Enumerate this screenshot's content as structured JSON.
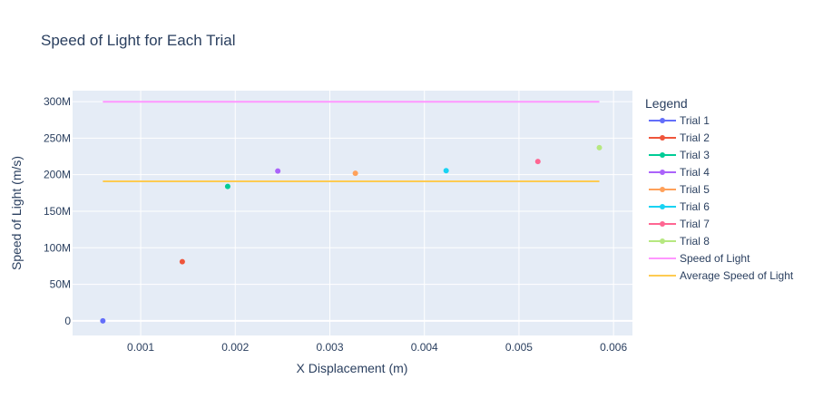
{
  "chart_data": {
    "type": "scatter",
    "title": "Speed of Light for Each Trial",
    "xlabel": "X Displacement (m)",
    "ylabel": "Speed of Light (m/s)",
    "xlim": [
      0.00028,
      0.0062
    ],
    "ylim": [
      -20000000,
      315000000
    ],
    "x_ticks": [
      0.001,
      0.002,
      0.003,
      0.004,
      0.005,
      0.006
    ],
    "x_tick_labels": [
      "0.001",
      "0.002",
      "0.003",
      "0.004",
      "0.005",
      "0.006"
    ],
    "y_ticks": [
      0,
      50000000,
      100000000,
      150000000,
      200000000,
      250000000,
      300000000
    ],
    "y_tick_labels": [
      "0",
      "50M",
      "100M",
      "150M",
      "200M",
      "250M",
      "300M"
    ],
    "grid": true,
    "background": "#e5ecf6",
    "legend": {
      "title": "Legend",
      "placement": "right"
    },
    "series": [
      {
        "name": "Trial 1",
        "x": [
          0.0006
        ],
        "y": [
          0
        ],
        "color": "#636efa",
        "mode": "markers"
      },
      {
        "name": "Trial 2",
        "x": [
          0.00144
        ],
        "y": [
          81000000
        ],
        "color": "#ef553b",
        "mode": "markers"
      },
      {
        "name": "Trial 3",
        "x": [
          0.00192
        ],
        "y": [
          184000000
        ],
        "color": "#00cc96",
        "mode": "markers"
      },
      {
        "name": "Trial 4",
        "x": [
          0.00245
        ],
        "y": [
          205000000
        ],
        "color": "#ab63fa",
        "mode": "markers"
      },
      {
        "name": "Trial 5",
        "x": [
          0.00327
        ],
        "y": [
          202000000
        ],
        "color": "#ffa15a",
        "mode": "markers"
      },
      {
        "name": "Trial 6",
        "x": [
          0.00423
        ],
        "y": [
          205500000
        ],
        "color": "#19d3f3",
        "mode": "markers"
      },
      {
        "name": "Trial 7",
        "x": [
          0.0052
        ],
        "y": [
          218000000
        ],
        "color": "#ff6692",
        "mode": "markers"
      },
      {
        "name": "Trial 8",
        "x": [
          0.00585
        ],
        "y": [
          237000000
        ],
        "color": "#b6e880",
        "mode": "markers"
      },
      {
        "name": "Speed of Light",
        "x": [
          0.0006,
          0.00585
        ],
        "y": [
          299792458,
          299792458
        ],
        "color": "#ff97ff",
        "mode": "line"
      },
      {
        "name": "Average Speed of Light",
        "x": [
          0.0006,
          0.00585
        ],
        "y": [
          191000000,
          191000000
        ],
        "color": "#fecb52",
        "mode": "line"
      }
    ]
  }
}
